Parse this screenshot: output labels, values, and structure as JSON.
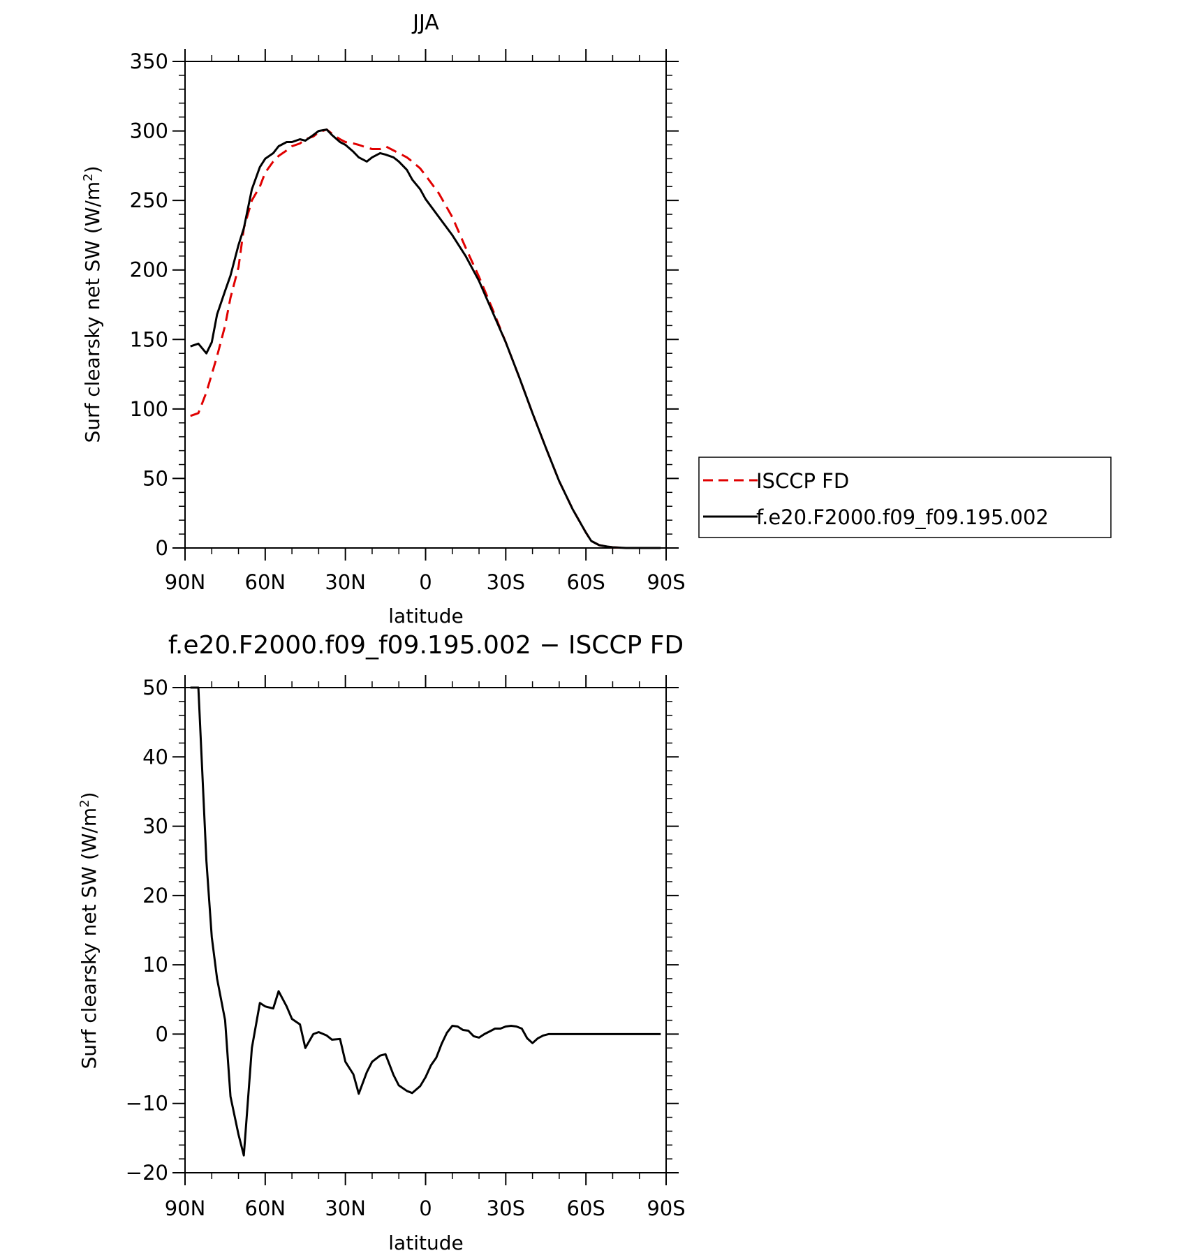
{
  "colors": {
    "model": "#000000",
    "obs": "#e00000",
    "axis": "#000000"
  },
  "chart_data": [
    {
      "type": "line",
      "title": "JJA",
      "xlabel": "latitude",
      "ylabel_main": "Surf clearsky net SW (W/m",
      "ylabel_sup": "2",
      "ylabel_close": ")",
      "xlim": [
        90,
        -90
      ],
      "ylim": [
        0,
        350
      ],
      "xticks": [
        90,
        60,
        30,
        0,
        -30,
        -60,
        -90
      ],
      "xtick_labels": [
        "90N",
        "60N",
        "30N",
        "0",
        "30S",
        "60S",
        "90S"
      ],
      "yticks": [
        0,
        50,
        100,
        150,
        200,
        250,
        300,
        350
      ],
      "ytick_labels": [
        "0",
        "50",
        "100",
        "150",
        "200",
        "250",
        "300",
        "350"
      ],
      "legend_position": "right",
      "series": [
        {
          "name": "ISCCP FD",
          "style": "dashed",
          "color": "#e00000",
          "x": [
            88,
            85,
            82,
            80,
            78,
            75,
            73,
            70,
            68,
            65,
            62,
            60,
            57,
            55,
            52,
            50,
            47,
            45,
            42,
            40,
            37,
            35,
            32,
            30,
            27,
            25,
            22,
            20,
            17,
            15,
            12,
            10,
            7,
            5,
            2,
            0,
            -5,
            -10,
            -15,
            -20,
            -25,
            -30,
            -35,
            -40,
            -45,
            -50,
            -55,
            -60,
            -62,
            -65,
            -68,
            -70,
            -75,
            -80,
            -85,
            -88
          ],
          "y": [
            95,
            97,
            112,
            125,
            138,
            160,
            180,
            202,
            230,
            250,
            260,
            270,
            278,
            282,
            286,
            289,
            291,
            294,
            296,
            299,
            301,
            298,
            294,
            292,
            291,
            290,
            288,
            287,
            287,
            289,
            286,
            284,
            281,
            278,
            273,
            268,
            255,
            238,
            216,
            195,
            172,
            148,
            123,
            97,
            72,
            48,
            28,
            11,
            5,
            2,
            1,
            0.5,
            0,
            0,
            0,
            0
          ]
        },
        {
          "name": "f.e20.F2000.f09_f09.195.002",
          "style": "solid",
          "color": "#000000",
          "x": [
            88,
            85,
            82,
            80,
            78,
            75,
            73,
            70,
            68,
            65,
            62,
            60,
            57,
            55,
            52,
            50,
            47,
            45,
            42,
            40,
            37,
            35,
            32,
            30,
            27,
            25,
            22,
            20,
            17,
            15,
            12,
            10,
            7,
            5,
            2,
            0,
            -5,
            -10,
            -15,
            -20,
            -25,
            -30,
            -35,
            -40,
            -45,
            -50,
            -55,
            -60,
            -62,
            -65,
            -68,
            -70,
            -75,
            -80,
            -85,
            -88
          ],
          "y": [
            145,
            147,
            140,
            148,
            168,
            185,
            196,
            218,
            230,
            258,
            274,
            280,
            284,
            289,
            292,
            292,
            294,
            293,
            297,
            300,
            301,
            297,
            292,
            290,
            285,
            281,
            278,
            281,
            284,
            283,
            281,
            278,
            272,
            265,
            258,
            251,
            238,
            225,
            210,
            192,
            170,
            148,
            123,
            97,
            72,
            48,
            28,
            11,
            5,
            2,
            1,
            0.5,
            0,
            0,
            0,
            0
          ]
        }
      ]
    },
    {
      "type": "line",
      "title": "f.e20.F2000.f09_f09.195.002 − ISCCP FD",
      "xlabel": "latitude",
      "ylabel_main": "Surf clearsky net SW (W/m",
      "ylabel_sup": "2",
      "ylabel_close": ")",
      "xlim": [
        90,
        -90
      ],
      "ylim": [
        -20,
        50
      ],
      "xticks": [
        90,
        60,
        30,
        0,
        -30,
        -60,
        -90
      ],
      "xtick_labels": [
        "90N",
        "60N",
        "30N",
        "0",
        "30S",
        "60S",
        "90S"
      ],
      "yticks": [
        -20,
        -10,
        0,
        10,
        20,
        30,
        40,
        50
      ],
      "ytick_labels": [
        "−20",
        "−10",
        "0",
        "10",
        "20",
        "30",
        "40",
        "50"
      ],
      "series": [
        {
          "name": "f.e20.F2000.f09_f09.195.002",
          "style": "solid",
          "color": "#000000",
          "x": [
            88,
            85,
            82,
            80,
            78,
            75,
            73,
            70,
            68,
            65,
            62,
            60,
            57,
            55,
            52,
            50,
            47,
            45,
            42,
            40,
            37,
            35,
            32,
            30,
            27,
            25,
            22,
            20,
            17,
            15,
            12,
            10,
            7,
            5,
            2,
            0,
            -2,
            -4,
            -6,
            -8,
            -10,
            -12,
            -14,
            -16,
            -18,
            -20,
            -22,
            -24,
            -26,
            -28,
            -30,
            -32,
            -34,
            -36,
            -38,
            -40,
            -42,
            -44,
            -46,
            -48,
            -50,
            -52,
            -54,
            -56,
            -58,
            -60,
            -62,
            -64,
            -68,
            -72,
            -76,
            -80,
            -84,
            -88
          ],
          "y": [
            50,
            50,
            25,
            14,
            8,
            2,
            -9,
            -14.5,
            -17.5,
            -2,
            4.5,
            4,
            3.7,
            6.2,
            4,
            2.2,
            1.4,
            -2,
            0,
            0.3,
            -0.2,
            -0.8,
            -0.7,
            -4,
            -5.8,
            -8.6,
            -5.5,
            -4,
            -3.1,
            -2.9,
            -5.9,
            -7.4,
            -8.2,
            -8.5,
            -7.5,
            -6.2,
            -4.5,
            -3.4,
            -1.4,
            0.2,
            1.2,
            1.1,
            0.6,
            0.5,
            -0.3,
            -0.5,
            0,
            0.4,
            0.8,
            0.8,
            1.1,
            1.2,
            1.1,
            0.8,
            -0.6,
            -1.3,
            -0.6,
            -0.2,
            0,
            0,
            0,
            0,
            0,
            0,
            0,
            0,
            0,
            0,
            0,
            0,
            0,
            0,
            0,
            0
          ]
        }
      ]
    }
  ]
}
